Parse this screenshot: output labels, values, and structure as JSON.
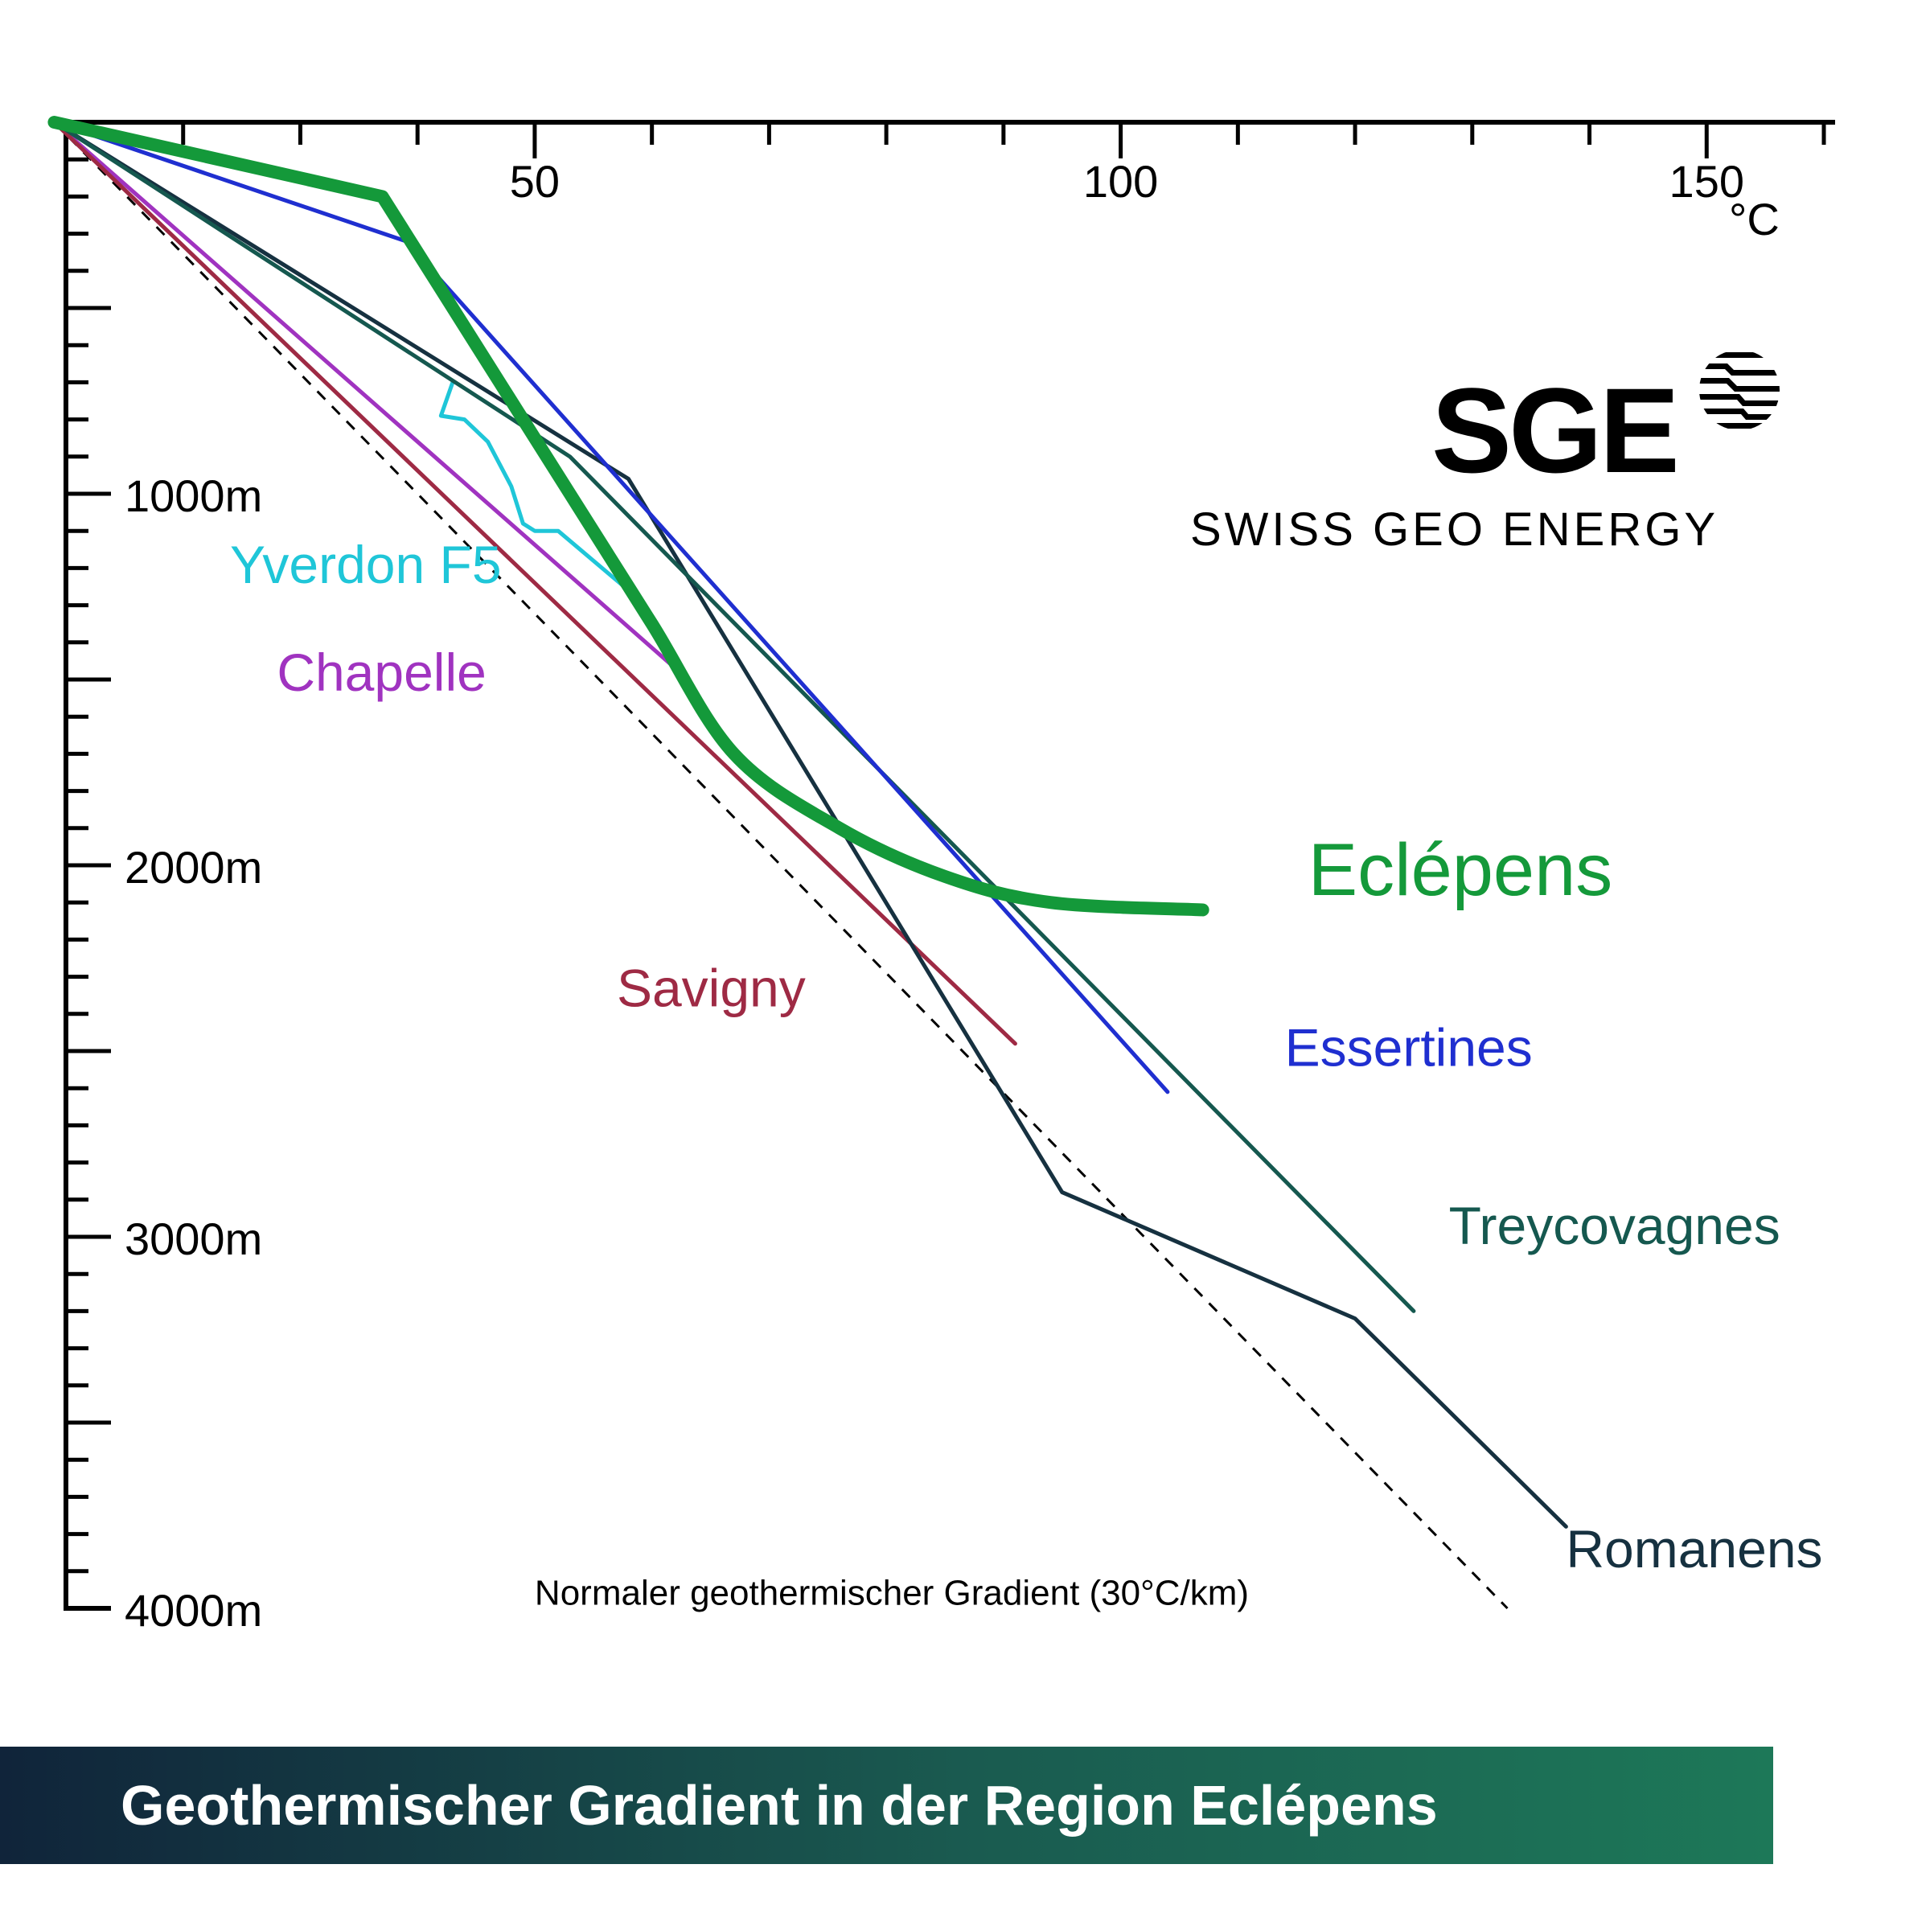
{
  "chart_data": {
    "type": "line",
    "title": "Geothermischer Gradient in der Region Eclépens",
    "x_unit": "°C",
    "xlim": [
      10,
      160
    ],
    "ylim": [
      0,
      4000
    ],
    "x_ticks": [
      {
        "value": 50,
        "label": "50"
      },
      {
        "value": 100,
        "label": "100"
      },
      {
        "value": 150,
        "label": "150"
      }
    ],
    "y_ticks": [
      {
        "value": 1000,
        "label": "1000m"
      },
      {
        "value": 2000,
        "label": "2000m"
      },
      {
        "value": 3000,
        "label": "3000m"
      },
      {
        "value": 4000,
        "label": "4000m"
      }
    ],
    "series": [
      {
        "name": "Eclépens",
        "color": "#14993a",
        "width": 16,
        "smooth": true,
        "label_at": [
          116,
          2080
        ],
        "label_size": 92,
        "points": [
          [
            9,
            0
          ],
          [
            37,
            200
          ],
          [
            45,
            600
          ],
          [
            53,
            1000
          ],
          [
            60,
            1350
          ],
          [
            67,
            1700
          ],
          [
            76,
            1900
          ],
          [
            85,
            2030
          ],
          [
            94,
            2100
          ],
          [
            107,
            2120
          ]
        ]
      },
      {
        "name": "Essertines",
        "color": "#1f2fd0",
        "width": 5,
        "label_at": [
          114,
          2540
        ],
        "label_size": 66,
        "points": [
          [
            9,
            0
          ],
          [
            39,
            320
          ],
          [
            104,
            2610
          ]
        ]
      },
      {
        "name": "Treycovagnes",
        "color": "#15584f",
        "width": 5,
        "label_at": [
          128,
          3020
        ],
        "label_size": 66,
        "points": [
          [
            9,
            0
          ],
          [
            53,
            900
          ],
          [
            125,
            3200
          ]
        ]
      },
      {
        "name": "Romanens",
        "color": "#163140",
        "width": 5,
        "label_at": [
          138,
          3890
        ],
        "label_size": 66,
        "points": [
          [
            9,
            0
          ],
          [
            58,
            960
          ],
          [
            95,
            2880
          ],
          [
            120,
            3220
          ],
          [
            138,
            3780
          ]
        ]
      },
      {
        "name": "Savigny",
        "color": "#9e2a44",
        "width": 5,
        "label_at": [
          57,
          2380
        ],
        "label_size": 66,
        "points": [
          [
            9,
            0
          ],
          [
            91,
            2480
          ]
        ]
      },
      {
        "name": "Chapelle",
        "color": "#a033c0",
        "width": 5,
        "label_at": [
          28,
          1530
        ],
        "label_size": 66,
        "points": [
          [
            9,
            0
          ],
          [
            62,
            1470
          ]
        ]
      },
      {
        "name": "Yverdon F5",
        "color": "#1fc6d8",
        "width": 5,
        "label_at": [
          24,
          1240
        ],
        "label_size": 66,
        "points": [
          [
            43,
            700
          ],
          [
            42,
            790
          ],
          [
            44,
            800
          ],
          [
            46,
            860
          ],
          [
            48,
            980
          ],
          [
            49,
            1080
          ],
          [
            50,
            1100
          ],
          [
            52,
            1100
          ],
          [
            58,
            1260
          ],
          [
            61,
            1400
          ]
        ]
      },
      {
        "name": "Normaler geothermischer Gradient (30°C/km)",
        "color": "#000000",
        "width": 3,
        "dashed": true,
        "label_at": [
          50,
          3990
        ],
        "label_size": 44,
        "points": [
          [
            9,
            0
          ],
          [
            133,
            4000
          ]
        ]
      }
    ]
  },
  "axis": {
    "unit_label": "°C"
  },
  "note": {
    "text": "Normaler geothermischer Gradient (30°C/km)"
  },
  "logo": {
    "main": "SGE",
    "sub": "SWISS GEO ENERGY"
  },
  "title_bar": {
    "text": "Geothermischer Gradient in der Region Eclépens"
  }
}
